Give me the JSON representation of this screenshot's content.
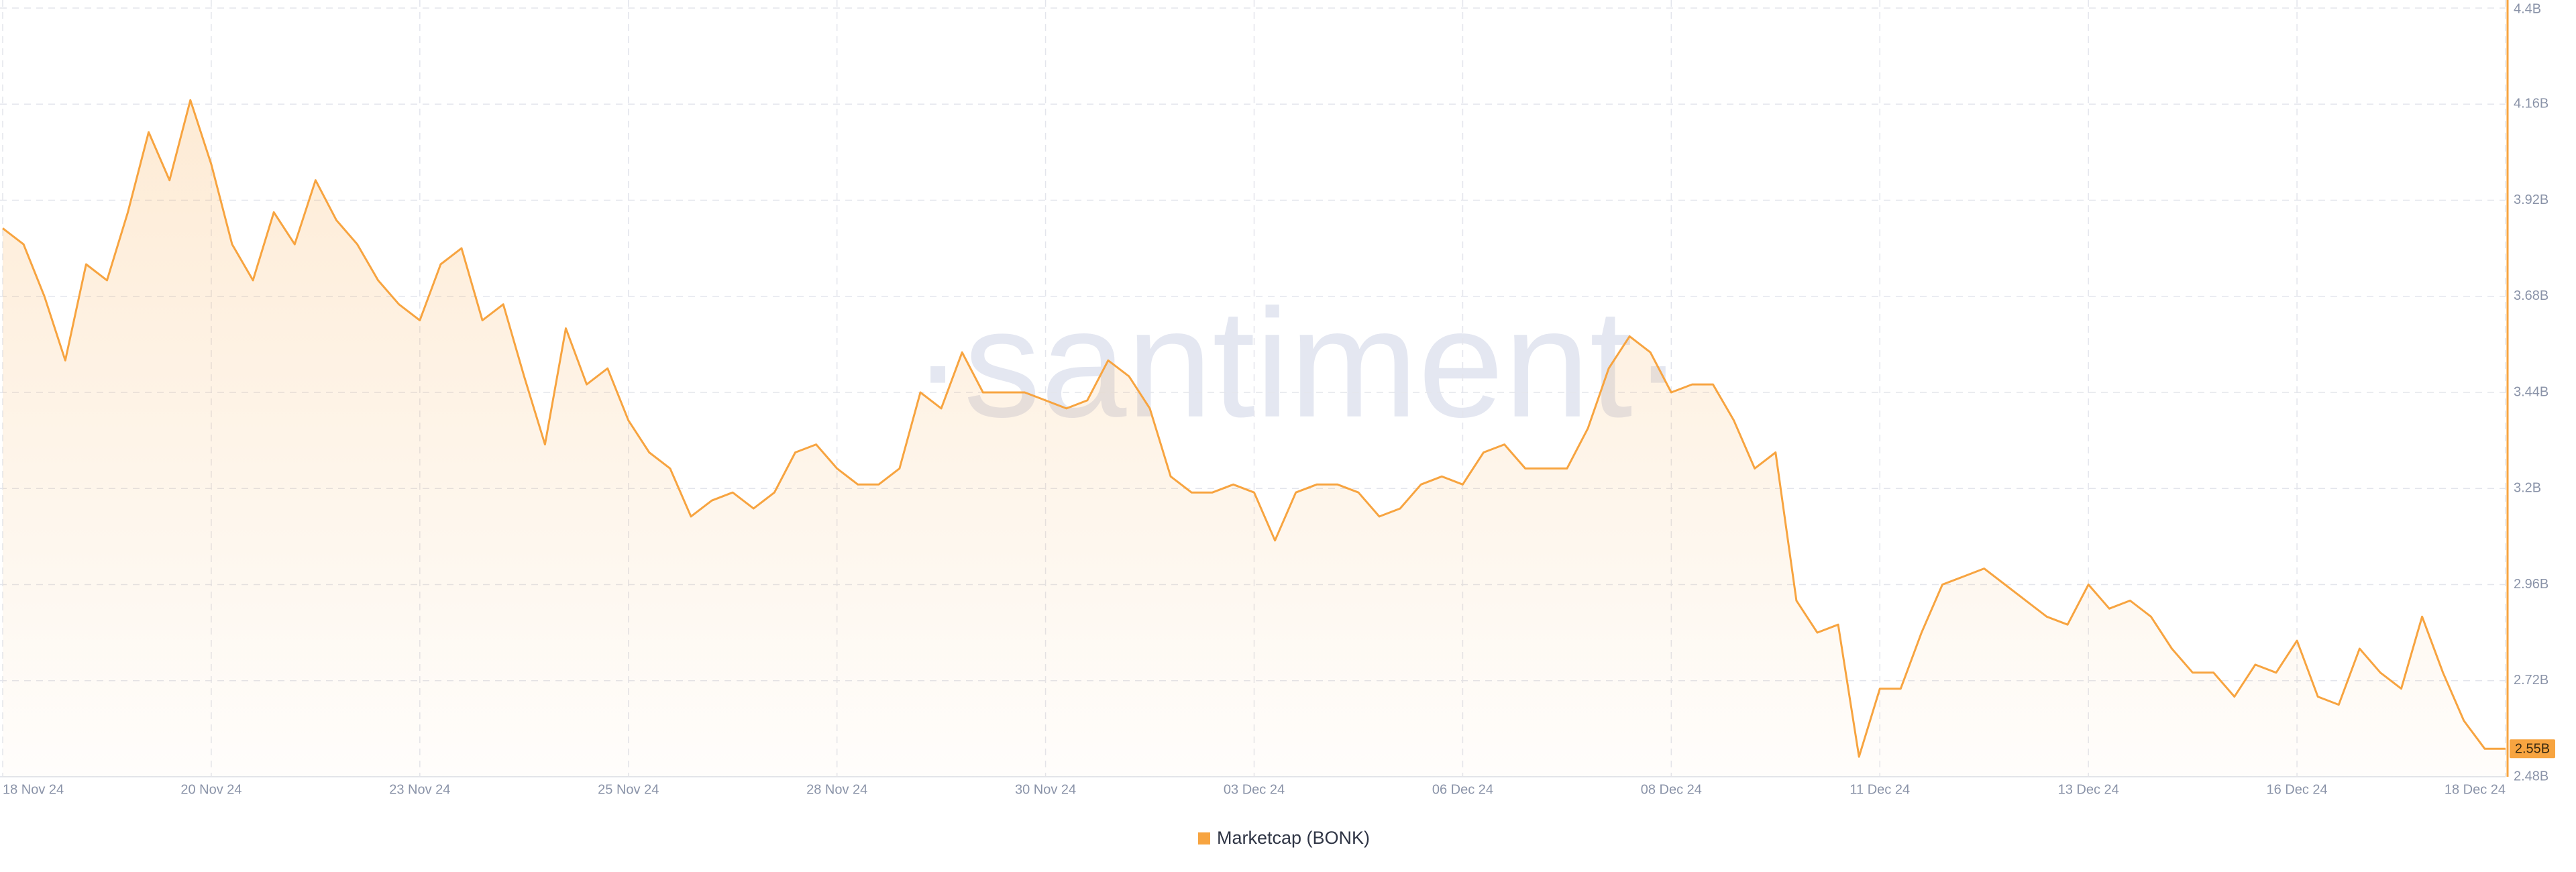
{
  "chart_data": {
    "type": "line",
    "watermark": "·santiment·",
    "categories": [
      "18 Nov 24",
      null,
      null,
      null,
      null,
      null,
      null,
      null,
      null,
      null,
      "20 Nov 24",
      null,
      null,
      null,
      null,
      null,
      null,
      null,
      null,
      null,
      "23 Nov 24",
      null,
      null,
      null,
      null,
      null,
      null,
      null,
      null,
      null,
      "25 Nov 24",
      null,
      null,
      null,
      null,
      null,
      null,
      null,
      null,
      null,
      "28 Nov 24",
      null,
      null,
      null,
      null,
      null,
      null,
      null,
      null,
      null,
      "30 Nov 24",
      null,
      null,
      null,
      null,
      null,
      null,
      null,
      null,
      null,
      "03 Dec 24",
      null,
      null,
      null,
      null,
      null,
      null,
      null,
      null,
      null,
      "06 Dec 24",
      null,
      null,
      null,
      null,
      null,
      null,
      null,
      null,
      null,
      "08 Dec 24",
      null,
      null,
      null,
      null,
      null,
      null,
      null,
      null,
      null,
      "11 Dec 24",
      null,
      null,
      null,
      null,
      null,
      null,
      null,
      null,
      null,
      "13 Dec 24",
      null,
      null,
      null,
      null,
      null,
      null,
      null,
      null,
      null,
      "16 Dec 24",
      null,
      null,
      null,
      null,
      null,
      null,
      null,
      null,
      null,
      "18 Dec 24"
    ],
    "series": [
      {
        "name": "Marketcap (BONK)",
        "color": "#f7a440",
        "values": [
          3.85,
          3.81,
          3.68,
          3.52,
          3.76,
          3.72,
          3.89,
          4.09,
          3.97,
          4.17,
          4.01,
          3.81,
          3.72,
          3.89,
          3.81,
          3.97,
          3.87,
          3.81,
          3.72,
          3.66,
          3.62,
          3.76,
          3.8,
          3.62,
          3.66,
          3.48,
          3.31,
          3.6,
          3.46,
          3.5,
          3.37,
          3.29,
          3.25,
          3.13,
          3.17,
          3.19,
          3.15,
          3.19,
          3.29,
          3.31,
          3.25,
          3.21,
          3.21,
          3.25,
          3.44,
          3.4,
          3.54,
          3.44,
          3.44,
          3.44,
          3.42,
          3.4,
          3.42,
          3.52,
          3.48,
          3.4,
          3.23,
          3.19,
          3.19,
          3.21,
          3.19,
          3.07,
          3.19,
          3.21,
          3.21,
          3.19,
          3.13,
          3.15,
          3.21,
          3.23,
          3.21,
          3.29,
          3.31,
          3.25,
          3.25,
          3.25,
          3.35,
          3.5,
          3.58,
          3.54,
          3.44,
          3.46,
          3.46,
          3.37,
          3.25,
          3.29,
          2.92,
          2.84,
          2.86,
          2.53,
          2.7,
          2.7,
          2.84,
          2.96,
          2.98,
          3.0,
          2.96,
          2.92,
          2.88,
          2.86,
          2.96,
          2.9,
          2.92,
          2.88,
          2.8,
          2.74,
          2.74,
          2.68,
          2.76,
          2.74,
          2.82,
          2.68,
          2.66,
          2.8,
          2.74,
          2.7,
          2.88,
          2.74,
          2.62,
          2.55,
          2.55
        ],
        "value_labels": [
          null,
          null,
          null,
          null,
          null,
          null,
          null,
          null,
          null,
          null,
          null,
          null,
          null,
          null,
          null,
          null,
          null,
          null,
          null,
          null,
          null,
          null,
          null,
          null,
          null,
          null,
          null,
          null,
          null,
          null,
          null,
          null,
          null,
          null,
          null,
          null,
          null,
          null,
          null,
          null,
          null,
          null,
          null,
          null,
          null,
          null,
          null,
          null,
          null,
          null,
          null,
          null,
          null,
          null,
          null,
          null,
          null,
          null,
          null,
          null,
          null,
          null,
          null,
          null,
          null,
          null,
          null,
          null,
          null,
          null,
          null,
          null,
          null,
          null,
          null,
          null,
          null,
          null,
          null,
          null,
          null,
          null,
          null,
          null,
          null,
          null,
          null,
          null,
          null,
          null,
          null,
          null,
          null,
          null,
          null,
          null,
          null,
          null,
          null,
          null,
          null,
          null,
          null,
          null,
          null,
          null,
          null,
          null,
          null,
          null,
          null,
          null,
          null,
          null,
          null,
          null,
          null,
          null,
          null,
          null,
          "2.55B"
        ]
      }
    ],
    "ylim": [
      2.48,
      4.4
    ],
    "yticks": [
      {
        "value": 2.48,
        "label": "2.48B"
      },
      {
        "value": 2.72,
        "label": "2.72B"
      },
      {
        "value": 2.96,
        "label": "2.96B"
      },
      {
        "value": 3.2,
        "label": "3.2B"
      },
      {
        "value": 3.44,
        "label": "3.44B"
      },
      {
        "value": 3.68,
        "label": "3.68B"
      },
      {
        "value": 3.92,
        "label": "3.92B"
      },
      {
        "value": 4.16,
        "label": "4.16B"
      },
      {
        "value": 4.4,
        "label": "4.4B"
      }
    ],
    "grid": true,
    "legend": "bottom"
  }
}
